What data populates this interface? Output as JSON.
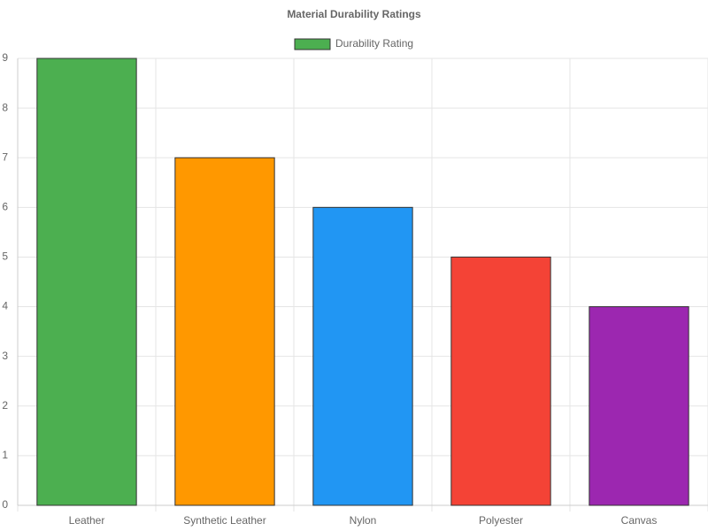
{
  "chart_data": {
    "type": "bar",
    "title": "Material Durability Ratings",
    "categories": [
      "Leather",
      "Synthetic Leather",
      "Nylon",
      "Polyester",
      "Canvas"
    ],
    "series": [
      {
        "name": "Durability Rating",
        "values": [
          9,
          7,
          6,
          5,
          4
        ],
        "colors": [
          "#4caf50",
          "#ff9800",
          "#2196f3",
          "#f44336",
          "#9c27b0"
        ]
      }
    ],
    "ylim": [
      0,
      9
    ],
    "yticks": [
      0,
      1,
      2,
      3,
      4,
      5,
      6,
      7,
      8,
      9
    ],
    "grid": true
  }
}
